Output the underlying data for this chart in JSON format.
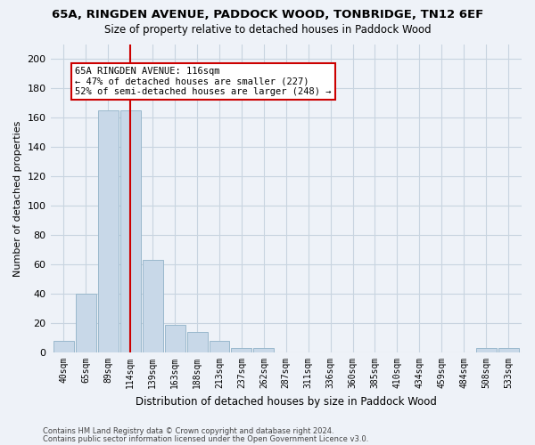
{
  "title1": "65A, RINGDEN AVENUE, PADDOCK WOOD, TONBRIDGE, TN12 6EF",
  "title2": "Size of property relative to detached houses in Paddock Wood",
  "xlabel": "Distribution of detached houses by size in Paddock Wood",
  "ylabel": "Number of detached properties",
  "footnote1": "Contains HM Land Registry data © Crown copyright and database right 2024.",
  "footnote2": "Contains public sector information licensed under the Open Government Licence v3.0.",
  "bar_labels": [
    "40sqm",
    "65sqm",
    "89sqm",
    "114sqm",
    "139sqm",
    "163sqm",
    "188sqm",
    "213sqm",
    "237sqm",
    "262sqm",
    "287sqm",
    "311sqm",
    "336sqm",
    "360sqm",
    "385sqm",
    "410sqm",
    "434sqm",
    "459sqm",
    "484sqm",
    "508sqm",
    "533sqm"
  ],
  "bar_values": [
    8,
    40,
    165,
    165,
    63,
    19,
    14,
    8,
    3,
    3,
    0,
    0,
    0,
    0,
    0,
    0,
    0,
    0,
    0,
    3,
    3
  ],
  "bar_color": "#c8d8e8",
  "bar_edge_color": "#9ab8cc",
  "grid_color": "#c8d4e0",
  "background_color": "#eef2f8",
  "vline_x": 3,
  "vline_color": "#cc0000",
  "annotation_text": "65A RINGDEN AVENUE: 116sqm\n← 47% of detached houses are smaller (227)\n52% of semi-detached houses are larger (248) →",
  "annotation_box_facecolor": "#ffffff",
  "annotation_box_edgecolor": "#cc0000",
  "ylim": [
    0,
    210
  ],
  "yticks": [
    0,
    20,
    40,
    60,
    80,
    100,
    120,
    140,
    160,
    180,
    200
  ]
}
